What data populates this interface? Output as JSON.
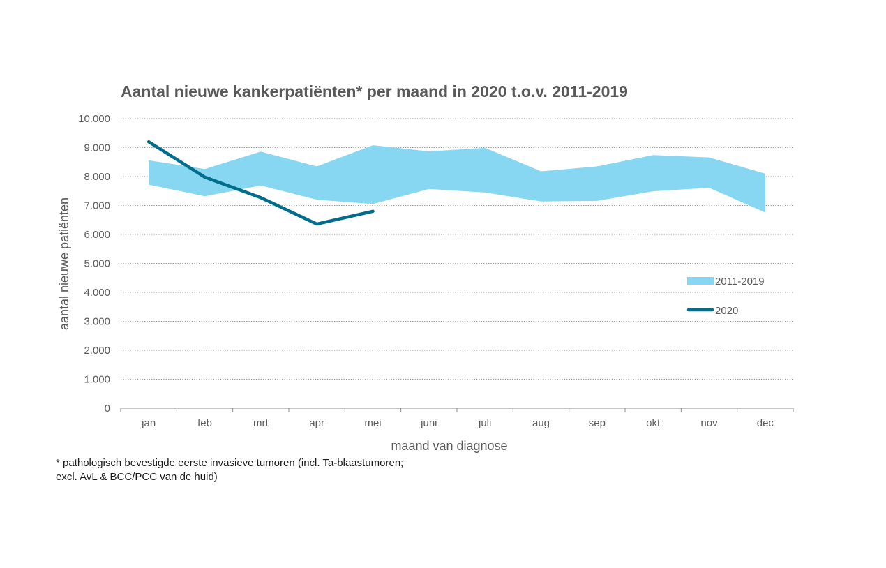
{
  "chart_data": {
    "type": "line",
    "title": "Aantal nieuwe kankerpatiënten* per maand in 2020 t.o.v. 2011-2019",
    "xlabel": "maand van diagnose",
    "ylabel": "aantal nieuwe patiënten",
    "ylim": [
      0,
      10000
    ],
    "yticks": [
      "0",
      "1.000",
      "2.000",
      "3.000",
      "4.000",
      "5.000",
      "6.000",
      "7.000",
      "8.000",
      "9.000",
      "10.000"
    ],
    "categories": [
      "jan",
      "feb",
      "mrt",
      "apr",
      "mei",
      "juni",
      "juli",
      "aug",
      "sep",
      "okt",
      "nov",
      "dec"
    ],
    "grid": true,
    "legend_position": "right",
    "band": {
      "name": "2011-2019",
      "color": "#87d7f2",
      "low": [
        7720,
        7320,
        7690,
        7200,
        7050,
        7570,
        7450,
        7140,
        7160,
        7490,
        7610,
        6760
      ],
      "high": [
        8560,
        8260,
        8860,
        8350,
        9080,
        8870,
        8990,
        8180,
        8350,
        8740,
        8660,
        8100
      ]
    },
    "series": [
      {
        "name": "2020",
        "color": "#006d8a",
        "values": [
          9200,
          7980,
          7270,
          6360,
          6800,
          null,
          null,
          null,
          null,
          null,
          null,
          null
        ]
      }
    ]
  },
  "footnote": {
    "line1": "* pathologisch bevestigde eerste invasieve tumoren (incl. Ta-blaastumoren;",
    "line2": "excl. AvL & BCC/PCC van de huid)"
  }
}
